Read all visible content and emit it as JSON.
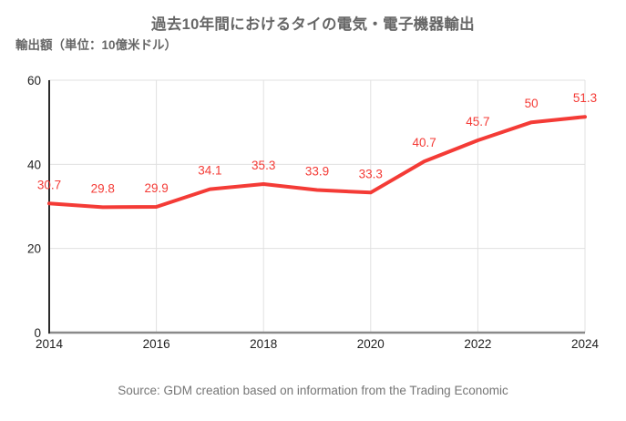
{
  "page": {
    "title": "過去10年間におけるタイの電気・電子機器輸出",
    "unit_label": "輸出額（単位：10億米ドル）",
    "source": "Source: GDM creation based on information from the Trading Economic"
  },
  "colors": {
    "line": "#f43b36",
    "point_label": "#f43b36",
    "title": "#666666",
    "tick": "#212121",
    "grid": "#e0e0e0",
    "axis_y": "#2b2b2b",
    "axis_x": "#8a8a8a",
    "source": "#757575"
  },
  "chart_data": {
    "type": "line",
    "title": "過去10年間におけるタイの電気・電子機器輸出",
    "ylabel": "輸出額（単位：10億米ドル）",
    "x": [
      2014,
      2015,
      2016,
      2017,
      2018,
      2019,
      2020,
      2021,
      2022,
      2023,
      2024
    ],
    "values": [
      30.7,
      29.8,
      29.9,
      34.1,
      35.3,
      33.9,
      33.3,
      40.7,
      45.7,
      50,
      51.3
    ],
    "point_labels": [
      "30.7",
      "29.8",
      "29.9",
      "34.1",
      "35.3",
      "33.9",
      "33.3",
      "40.7",
      "45.7",
      "50",
      "51.3"
    ],
    "xticks": [
      2014,
      2016,
      2018,
      2020,
      2022,
      2024
    ],
    "yticks": [
      0,
      20,
      40,
      60
    ],
    "xlim": [
      2014,
      2024
    ],
    "ylim": [
      0,
      60
    ],
    "grid": true,
    "legend": "none",
    "source": "Source: GDM creation based on information from the Trading Economic"
  }
}
